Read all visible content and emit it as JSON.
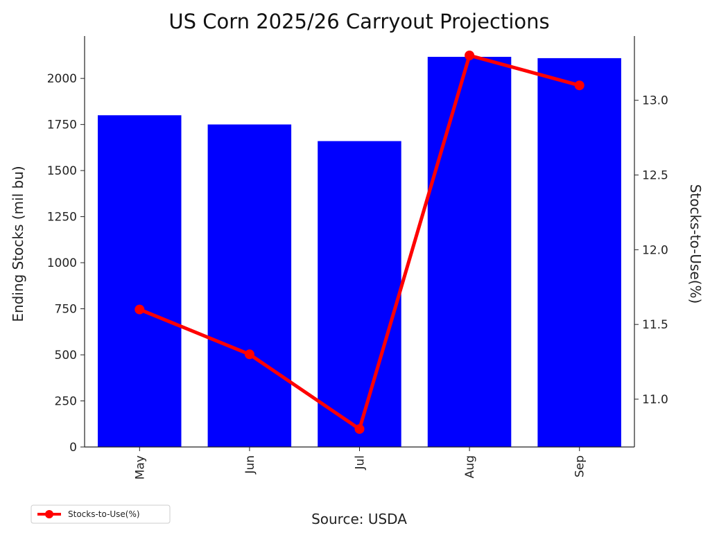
{
  "chart_data": {
    "type": "bar",
    "title": "US Corn 2025/26 Carryout Projections",
    "subtitle": "",
    "categories": [
      "May",
      "Jun",
      "Jul",
      "Aug",
      "Sep"
    ],
    "series": [
      {
        "type": "bar",
        "axis": "left",
        "color": "#0000ff",
        "values": [
          1800,
          1750,
          1660,
          2117,
          2110
        ]
      },
      {
        "name": "Stocks-to-Use(%)",
        "type": "line",
        "axis": "right",
        "color": "#ff0000",
        "marker": "circle",
        "values": [
          11.6,
          11.3,
          10.8,
          13.3,
          13.1
        ]
      }
    ],
    "ylabel": "Ending Stocks (mil bu)",
    "ylabel_right": "Stocks-to-Use(%)",
    "xlabel": "Source: USDA",
    "ylim": [
      0,
      2230
    ],
    "ylim_right": [
      10.68,
      13.43
    ],
    "yticks": [
      0,
      250,
      500,
      750,
      1000,
      1250,
      1500,
      1750,
      2000
    ],
    "yticks_right": [
      11.0,
      11.5,
      12.0,
      12.5,
      13.0
    ],
    "grid": false,
    "legend": {
      "placement": "bottom-left",
      "entries": [
        "Stocks-to-Use(%)"
      ]
    }
  }
}
